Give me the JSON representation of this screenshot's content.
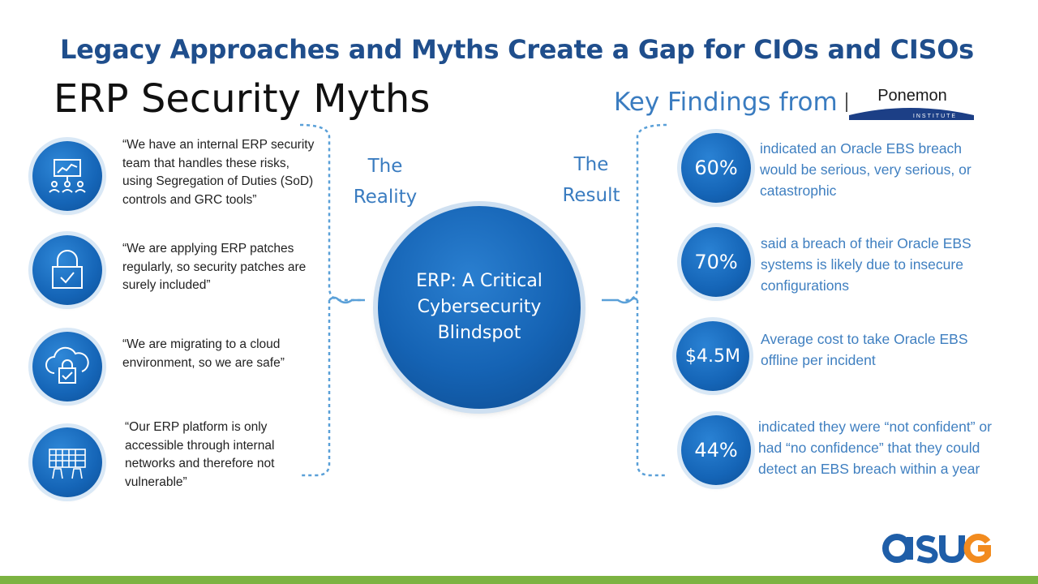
{
  "title": "Legacy Approaches and Myths Create a Gap for CIOs and CISOs",
  "myths": {
    "heading": "ERP Security Myths",
    "items": [
      {
        "icon": "presentation-icon",
        "text": "“We have an internal ERP security team that handles these risks, using Segregation of Duties (SoD) controls and GRC tools”"
      },
      {
        "icon": "lock-check-icon",
        "text": "“We are applying ERP patches regularly, so security patches are surely included”"
      },
      {
        "icon": "cloud-lock-icon",
        "text": "“We are migrating to a cloud environment, so we are safe”"
      },
      {
        "icon": "keyboard-hands-icon",
        "text": "“Our ERP platform is only accessible through internal networks and therefore not vulnerable”"
      }
    ]
  },
  "center": {
    "left_label": [
      "The",
      "Reality"
    ],
    "right_label": [
      "The",
      "Result"
    ],
    "circle_text": "ERP: A Critical Cybersecurity Blindspot"
  },
  "findings": {
    "heading": "Key Findings from",
    "logo_text": "Ponemon",
    "logo_subtext": "INSTITUTE",
    "items": [
      {
        "value": "60%",
        "text": "indicated an Oracle EBS breach would be serious, very serious, or catastrophic"
      },
      {
        "value": "70%",
        "text": "said a breach of their Oracle EBS systems is likely due to insecure configurations"
      },
      {
        "value": "$4.5M",
        "text": "Average cost to take Oracle EBS offline per incident"
      },
      {
        "value": "44%",
        "text": "indicated they were “not confident” or had “no confidence” that they could detect an EBS breach within a year"
      }
    ]
  },
  "footer": {
    "logo": "asug",
    "accent_color": "#7cb342",
    "brand_color": "#1f4e8c"
  }
}
